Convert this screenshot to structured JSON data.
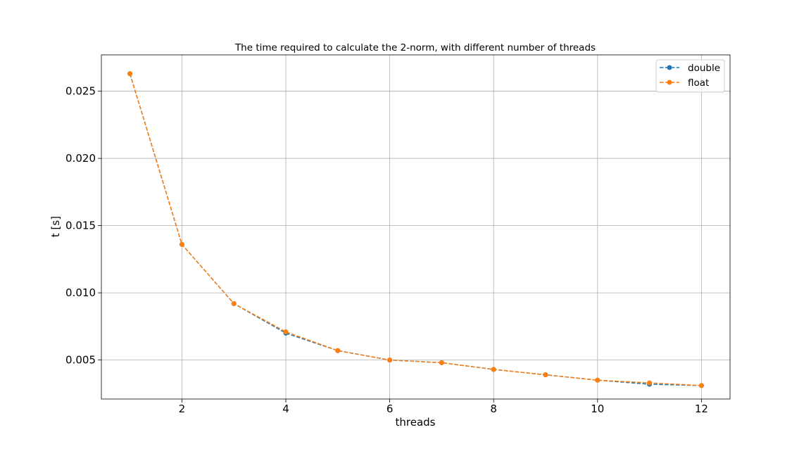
{
  "chart_data": {
    "type": "line",
    "title": "The time required to calculate the 2-norm, with different number of threads",
    "xlabel": "threads",
    "ylabel": "t [s]",
    "xlim": [
      0.45,
      12.55
    ],
    "ylim": [
      0.0021,
      0.0277
    ],
    "xticks": [
      2,
      4,
      6,
      8,
      10,
      12
    ],
    "xtick_labels": [
      "2",
      "4",
      "6",
      "8",
      "10",
      "12"
    ],
    "yticks": [
      0.005,
      0.01,
      0.015,
      0.02,
      0.025
    ],
    "ytick_labels": [
      "0.005",
      "0.010",
      "0.015",
      "0.020",
      "0.025"
    ],
    "grid": true,
    "legend_position": "top-right",
    "x": [
      1,
      2,
      3,
      4,
      5,
      6,
      7,
      8,
      9,
      10,
      11,
      12
    ],
    "series": [
      {
        "name": "double",
        "color": "#1f77b4",
        "values": [
          0.0263,
          0.0136,
          0.0092,
          0.007,
          0.0057,
          0.005,
          0.0048,
          0.0043,
          0.0039,
          0.0035,
          0.0032,
          0.0031
        ]
      },
      {
        "name": "float",
        "color": "#ff7f0e",
        "values": [
          0.0263,
          0.0136,
          0.0092,
          0.0071,
          0.0057,
          0.005,
          0.0048,
          0.0043,
          0.0039,
          0.0035,
          0.0033,
          0.0031
        ]
      }
    ]
  }
}
